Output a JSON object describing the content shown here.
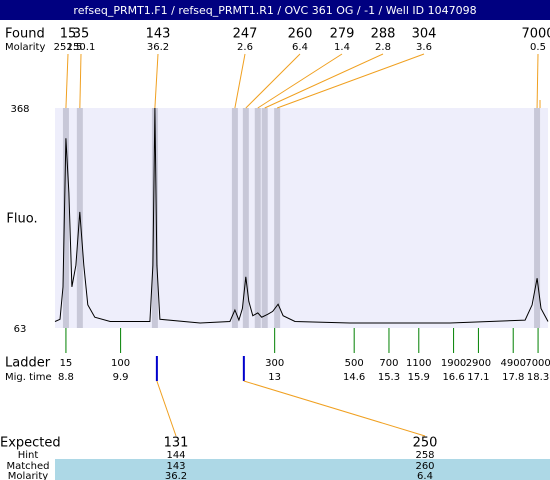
{
  "title": "refseq_PRMT1.F1 / refseq_PRMT1.R1 / OVC 361 OG  / -1 / Well ID 1047098",
  "found": {
    "label": "Found",
    "molarity_label": "Molarity",
    "sizes": [
      15,
      35,
      143,
      247,
      260,
      279,
      288,
      304,
      7000
    ],
    "molarity": [
      252.5,
      150.1,
      36.2,
      2.6,
      6.4,
      1.4,
      2.8,
      3.6,
      0.5
    ],
    "mig_times": [
      8.8,
      9.08,
      10.59,
      12.2,
      12.42,
      12.66,
      12.8,
      13.05,
      18.28
    ]
  },
  "chart_data": {
    "type": "line",
    "y_label": "Fluo.",
    "x": [
      8.58,
      8.68,
      8.74,
      8.8,
      8.86,
      8.92,
      9.0,
      9.08,
      9.16,
      9.24,
      9.38,
      9.69,
      10.49,
      10.55,
      10.59,
      10.63,
      10.69,
      11.5,
      12.1,
      12.2,
      12.28,
      12.35,
      12.42,
      12.48,
      12.56,
      12.66,
      12.74,
      12.86,
      12.96,
      13.07,
      13.17,
      13.41,
      14.51,
      16.53,
      18.04,
      18.18,
      18.28,
      18.36,
      18.5
    ],
    "values": [
      72,
      75,
      120,
      326,
      250,
      120,
      150,
      224,
      150,
      95,
      78,
      72,
      72,
      150,
      368,
      150,
      75,
      70,
      72,
      88,
      74,
      90,
      134,
      100,
      80,
      84,
      78,
      82,
      86,
      96,
      80,
      72,
      70,
      70,
      74,
      95,
      132,
      90,
      72
    ],
    "color": "#000000",
    "xlim": [
      8.58,
      18.5
    ],
    "ylim": [
      63,
      368
    ],
    "yticks": [
      63,
      368
    ]
  },
  "ladder": {
    "label": "Ladder",
    "mig_time_label": "Mig. time",
    "sizes": [
      15,
      100,
      300,
      500,
      700,
      1100,
      1900,
      2900,
      4900,
      7000
    ],
    "mig_times": [
      8.8,
      9.9,
      13,
      14.6,
      15.3,
      15.9,
      16.6,
      17.1,
      17.8,
      18.3
    ]
  },
  "expected": {
    "label": "Expected",
    "hint_label": "Hint",
    "matched_label": "Matched",
    "molarity_label": "Molarity",
    "sizes": [
      131,
      250
    ],
    "hint": [
      144,
      258
    ],
    "matched": [
      143,
      260
    ],
    "molarity": [
      36.2,
      6.4
    ],
    "mig_times": [
      10.63,
      12.38
    ]
  }
}
